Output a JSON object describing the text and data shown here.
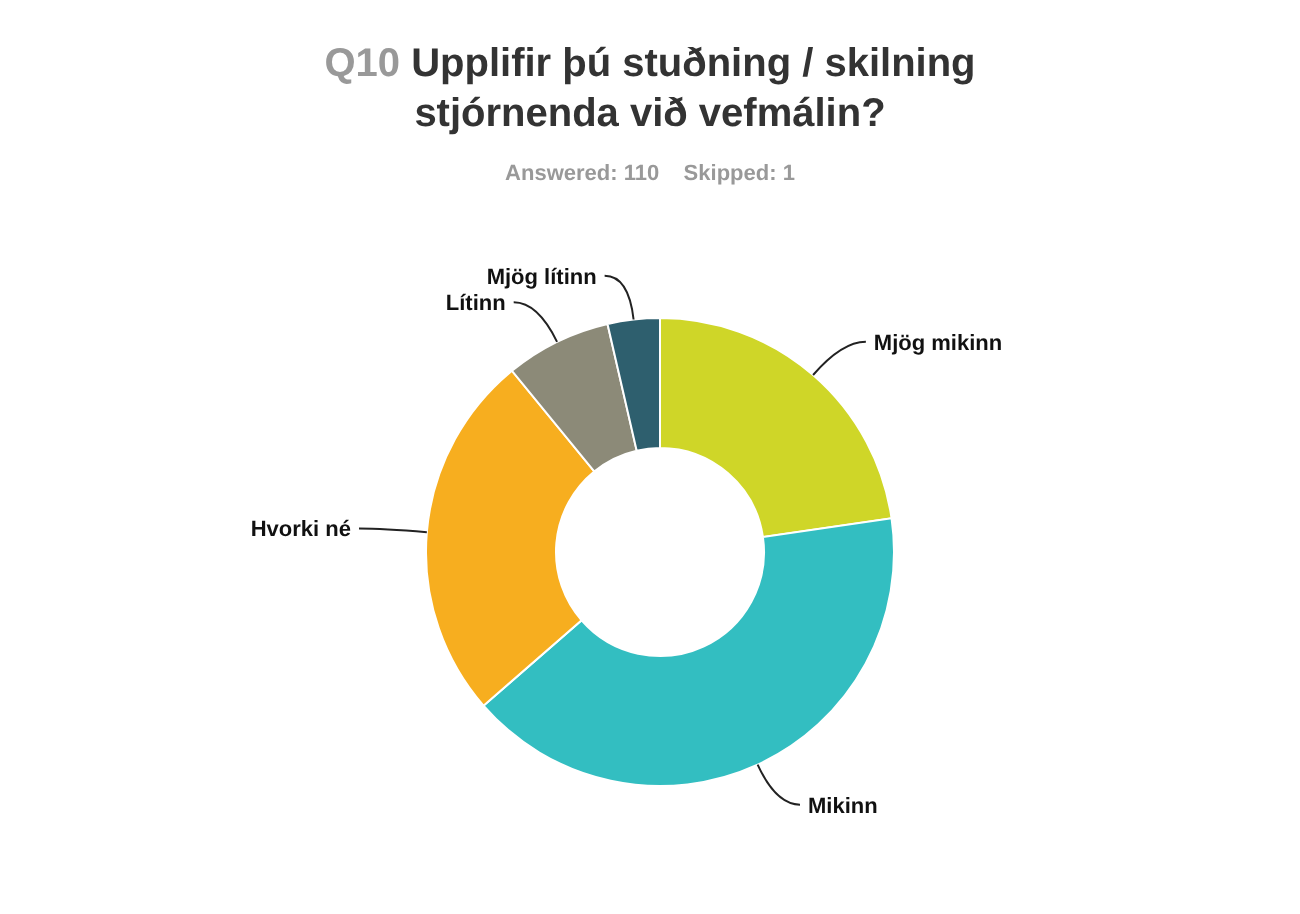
{
  "chart_data": {
    "type": "donut",
    "title": "Q10 Upplifir þú stuðning / skilning stjórnenda við vefmálin?",
    "subtitle": "Answered: 110    Skipped: 1",
    "categories": [
      "Mjög mikinn",
      "Mikinn",
      "Hvorki né",
      "Lítinn",
      "Mjög lítinn"
    ],
    "values": [
      22.7,
      40.9,
      25.5,
      7.3,
      3.6
    ],
    "colors": [
      "#cfd628",
      "#33bec1",
      "#f7ae1f",
      "#8c8a78",
      "#2e5f6e"
    ],
    "legend": false
  }
}
